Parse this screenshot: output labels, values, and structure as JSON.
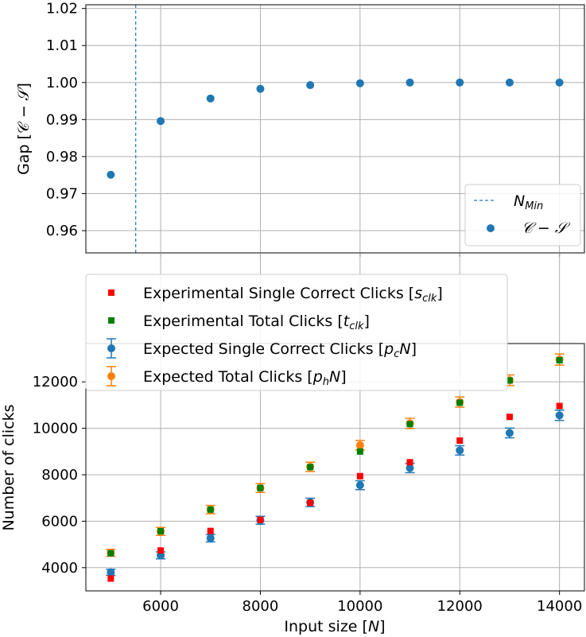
{
  "chart_data": [
    {
      "type": "scatter",
      "title": "",
      "xlabel": "",
      "ylabel": "Gap [𝒞 − 𝒮]",
      "xlim": [
        4500,
        14500
      ],
      "ylim": [
        0.954,
        1.021
      ],
      "grid": true,
      "x_ticks": [
        6000,
        8000,
        10000,
        12000,
        14000
      ],
      "y_ticks": [
        0.96,
        0.97,
        0.98,
        0.99,
        1.0,
        1.01,
        1.02
      ],
      "y_tick_labels": [
        "0.96",
        "0.97",
        "0.98",
        "0.99",
        "1.00",
        "1.01",
        "1.02"
      ],
      "vline": {
        "name": "N",
        "sub": "Min",
        "x": 5500,
        "color": "#1f77b4"
      },
      "series": [
        {
          "name": "𝒞 − 𝒮",
          "color": "#1f77b4",
          "marker": "circle",
          "x": [
            5000,
            6000,
            7000,
            8000,
            9000,
            10000,
            11000,
            12000,
            13000,
            14000
          ],
          "y": [
            0.9751,
            0.9896,
            0.9957,
            0.9983,
            0.9993,
            0.9998,
            1.0,
            1.0,
            1.0,
            1.0
          ]
        }
      ],
      "legend": {
        "position": "lower-right"
      }
    },
    {
      "type": "scatter",
      "title": "",
      "xlabel_prefix": "Input size [",
      "xlabel_var": "N",
      "xlabel_suffix": "]",
      "ylabel": "Number of clicks",
      "xlim": [
        4500,
        14500
      ],
      "ylim": [
        3000,
        13650
      ],
      "grid": true,
      "x_ticks": [
        6000,
        8000,
        10000,
        12000,
        14000
      ],
      "x_tick_labels": [
        "6000",
        "8000",
        "10000",
        "12000",
        "14000"
      ],
      "y_ticks": [
        4000,
        6000,
        8000,
        10000,
        12000
      ],
      "y_tick_labels": [
        "4000",
        "6000",
        "8000",
        "10000",
        "12000"
      ],
      "x": [
        5000,
        6000,
        7000,
        8000,
        9000,
        10000,
        11000,
        12000,
        13000,
        14000
      ],
      "series": [
        {
          "name_prefix": "Expected Single Correct Clicks [",
          "name_var": "p",
          "name_sub": "c",
          "name_suffix": "N]",
          "color": "#1f77b4",
          "marker": "circle-errorbar",
          "y": [
            3800,
            4530,
            5270,
            6040,
            6810,
            7550,
            8290,
            9050,
            9800,
            10560
          ],
          "err": [
            130,
            150,
            160,
            170,
            180,
            190,
            200,
            200,
            210,
            220
          ]
        },
        {
          "name_prefix": "Expected Total Clicks [",
          "name_var": "p",
          "name_sub": "h",
          "name_suffix": "N]",
          "color": "#ff7f0e",
          "marker": "circle-errorbar",
          "y": [
            4640,
            5560,
            6500,
            7430,
            8340,
            9270,
            10210,
            11130,
            12070,
            12960
          ],
          "err": [
            150,
            170,
            180,
            190,
            200,
            210,
            220,
            220,
            230,
            240
          ]
        },
        {
          "name_prefix": "Experimental Single Correct Clicks [",
          "name_var": "s",
          "name_sub": "clk",
          "name_suffix": "]",
          "color": "#ff0000",
          "marker": "square",
          "y": [
            3530,
            4740,
            5580,
            6060,
            6790,
            7940,
            8540,
            9470,
            10490,
            10960
          ]
        },
        {
          "name_prefix": "Experimental Total Clicks [",
          "name_var": "t",
          "name_sub": "clk",
          "name_suffix": "]",
          "color": "#008000",
          "marker": "square",
          "y": [
            4620,
            5570,
            6500,
            7430,
            8330,
            9000,
            10180,
            11100,
            12060,
            12930
          ]
        }
      ],
      "legend": {
        "position": "top-left"
      }
    }
  ]
}
